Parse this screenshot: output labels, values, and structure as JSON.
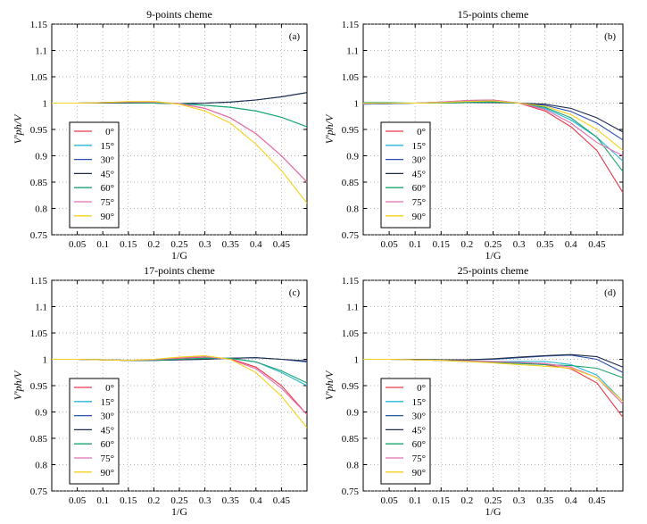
{
  "chart_data": [
    {
      "type": "line",
      "title": "9-points cheme",
      "tag": "(a)",
      "xlabel": "1/G",
      "ylabel": "V'ph/V",
      "xlim": [
        0,
        0.5
      ],
      "ylim": [
        0.75,
        1.15
      ],
      "xticks": [
        "0.05",
        "0.1",
        "0.15",
        "0.2",
        "0.25",
        "0.3",
        "0.35",
        "0.4",
        "0.45"
      ],
      "xtick_values": [
        0.05,
        0.1,
        0.15,
        0.2,
        0.25,
        0.3,
        0.35,
        0.4,
        0.45
      ],
      "yticks": [
        "0.75",
        "0.8",
        "0.85",
        "0.9",
        "0.95",
        "1",
        "1.05",
        "1.1",
        "1.15"
      ],
      "ytick_values": [
        0.75,
        0.8,
        0.85,
        0.9,
        0.95,
        1.0,
        1.05,
        1.1,
        1.15
      ],
      "grid": true,
      "legend": "bottom-left",
      "x": [
        0,
        0.05,
        0.1,
        0.15,
        0.2,
        0.25,
        0.3,
        0.35,
        0.4,
        0.45,
        0.5
      ],
      "series": [
        {
          "name": "0°",
          "color": "#e8394a",
          "values": [
            1.0,
            1.0,
            1.001,
            1.002,
            1.002,
            0.999,
            0.99,
            0.972,
            0.942,
            0.9,
            0.85
          ]
        },
        {
          "name": "15°",
          "color": "#29b6d8",
          "values": [
            1.0,
            1.0,
            1.001,
            1.001,
            1.0,
            0.999,
            0.996,
            0.992,
            0.985,
            0.973,
            0.955
          ]
        },
        {
          "name": "30°",
          "color": "#2a4fb0",
          "values": [
            1.0,
            1.0,
            1.0,
            1.0,
            1.0,
            0.999,
            1.0,
            1.002,
            1.006,
            1.012,
            1.02
          ]
        },
        {
          "name": "45°",
          "color": "#1f2f4a",
          "values": [
            1.0,
            1.0,
            1.0,
            1.0,
            1.0,
            0.999,
            1.0,
            1.002,
            1.006,
            1.012,
            1.02
          ]
        },
        {
          "name": "60°",
          "color": "#1aa56e",
          "values": [
            1.0,
            1.0,
            1.001,
            1.001,
            1.0,
            0.999,
            0.996,
            0.992,
            0.985,
            0.973,
            0.955
          ]
        },
        {
          "name": "75°",
          "color": "#e36fb2",
          "values": [
            1.0,
            1.0,
            1.001,
            1.002,
            1.002,
            0.999,
            0.99,
            0.972,
            0.942,
            0.9,
            0.85
          ]
        },
        {
          "name": "90°",
          "color": "#f2d21e",
          "values": [
            1.0,
            1.0,
            1.001,
            1.003,
            1.003,
            0.998,
            0.985,
            0.962,
            0.922,
            0.872,
            0.81
          ]
        }
      ]
    },
    {
      "type": "line",
      "title": "15-points cheme",
      "tag": "(b)",
      "xlabel": "1/G",
      "ylabel": "V'ph/V",
      "xlim": [
        0,
        0.5
      ],
      "ylim": [
        0.75,
        1.15
      ],
      "xticks": [
        "0.05",
        "0.1",
        "0.15",
        "0.2",
        "0.25",
        "0.3",
        "0.35",
        "0.4",
        "0.45"
      ],
      "xtick_values": [
        0.05,
        0.1,
        0.15,
        0.2,
        0.25,
        0.3,
        0.35,
        0.4,
        0.45
      ],
      "yticks": [
        "0.75",
        "0.8",
        "0.85",
        "0.9",
        "0.95",
        "1",
        "1.05",
        "1.1",
        "1.15"
      ],
      "ytick_values": [
        0.75,
        0.8,
        0.85,
        0.9,
        0.95,
        1.0,
        1.05,
        1.1,
        1.15
      ],
      "grid": true,
      "legend": "bottom-left",
      "x": [
        0,
        0.05,
        0.1,
        0.15,
        0.2,
        0.25,
        0.3,
        0.35,
        0.4,
        0.45,
        0.5
      ],
      "series": [
        {
          "name": "0°",
          "color": "#e8394a",
          "values": [
            0.998,
            0.999,
            1.0,
            1.002,
            1.005,
            1.006,
            1.0,
            0.985,
            0.955,
            0.91,
            0.83
          ]
        },
        {
          "name": "15°",
          "color": "#29b6d8",
          "values": [
            0.998,
            0.999,
            1.0,
            1.002,
            1.004,
            1.005,
            1.0,
            0.99,
            0.968,
            0.935,
            0.89
          ]
        },
        {
          "name": "30°",
          "color": "#2a4fb0",
          "values": [
            0.999,
            0.999,
            1.0,
            1.001,
            1.002,
            1.003,
            1.0,
            0.996,
            0.984,
            0.962,
            0.93
          ]
        },
        {
          "name": "45°",
          "color": "#1f2f4a",
          "values": [
            1.0,
            1.0,
            1.0,
            1.0,
            1.001,
            1.001,
            1.0,
            0.998,
            0.99,
            0.972,
            0.945
          ]
        },
        {
          "name": "60°",
          "color": "#1aa56e",
          "values": [
            1.001,
            1.001,
            1.0,
            1.0,
            1.001,
            1.002,
            1.0,
            0.992,
            0.972,
            0.935,
            0.87
          ]
        },
        {
          "name": "75°",
          "color": "#e36fb2",
          "values": [
            0.999,
            1.0,
            1.0,
            1.002,
            1.005,
            1.006,
            1.0,
            0.988,
            0.962,
            0.925,
            0.9
          ]
        },
        {
          "name": "90°",
          "color": "#f2d21e",
          "values": [
            1.0,
            1.0,
            1.0,
            1.001,
            1.003,
            1.004,
            1.0,
            0.994,
            0.978,
            0.95,
            0.91
          ]
        }
      ]
    },
    {
      "type": "line",
      "title": "17-points cheme",
      "tag": "(c)",
      "xlabel": "1/G",
      "ylabel": "V'ph/V",
      "xlim": [
        0,
        0.5
      ],
      "ylim": [
        0.75,
        1.15
      ],
      "xticks": [
        "0.05",
        "0.1",
        "0.15",
        "0.2",
        "0.25",
        "0.3",
        "0.35",
        "0.4",
        "0.45"
      ],
      "xtick_values": [
        0.05,
        0.1,
        0.15,
        0.2,
        0.25,
        0.3,
        0.35,
        0.4,
        0.45
      ],
      "yticks": [
        "0.75",
        "0.8",
        "0.85",
        "0.9",
        "0.95",
        "1",
        "1.05",
        "1.1",
        "1.15"
      ],
      "ytick_values": [
        0.75,
        0.8,
        0.85,
        0.9,
        0.95,
        1.0,
        1.05,
        1.1,
        1.15
      ],
      "grid": true,
      "legend": "bottom-left",
      "x": [
        0,
        0.05,
        0.1,
        0.15,
        0.2,
        0.25,
        0.3,
        0.35,
        0.4,
        0.45,
        0.5
      ],
      "series": [
        {
          "name": "0°",
          "color": "#e8394a",
          "values": [
            1.0,
            1.0,
            0.999,
            0.998,
            0.999,
            1.002,
            1.004,
            1.001,
            0.985,
            0.95,
            0.895
          ]
        },
        {
          "name": "15°",
          "color": "#29b6d8",
          "values": [
            1.0,
            1.0,
            0.999,
            0.998,
            0.998,
            1.0,
            1.002,
            1.002,
            0.995,
            0.975,
            0.95
          ]
        },
        {
          "name": "30°",
          "color": "#2a4fb0",
          "values": [
            1.0,
            1.0,
            0.999,
            0.998,
            0.998,
            0.999,
            1.0,
            1.002,
            1.003,
            1.0,
            0.995
          ]
        },
        {
          "name": "45°",
          "color": "#1f2f4a",
          "values": [
            1.0,
            1.0,
            0.999,
            0.998,
            0.998,
            0.999,
            1.0,
            1.002,
            1.003,
            1.0,
            0.997
          ]
        },
        {
          "name": "60°",
          "color": "#1aa56e",
          "values": [
            1.0,
            1.0,
            0.999,
            0.998,
            0.998,
            1.0,
            1.002,
            1.002,
            0.995,
            0.978,
            0.955
          ]
        },
        {
          "name": "75°",
          "color": "#e36fb2",
          "values": [
            1.0,
            1.0,
            0.999,
            0.998,
            0.999,
            1.003,
            1.005,
            1.0,
            0.982,
            0.945,
            0.895
          ]
        },
        {
          "name": "90°",
          "color": "#f2d21e",
          "values": [
            1.0,
            1.0,
            0.999,
            0.998,
            1.0,
            1.004,
            1.007,
            1.0,
            0.975,
            0.93,
            0.87
          ]
        }
      ]
    },
    {
      "type": "line",
      "title": "25-points cheme",
      "tag": "(d)",
      "xlabel": "1/G",
      "ylabel": "V'ph/V",
      "xlim": [
        0,
        0.5
      ],
      "ylim": [
        0.75,
        1.15
      ],
      "xticks": [
        "0.05",
        "0.1",
        "0.15",
        "0.2",
        "0.25",
        "0.3",
        "0.35",
        "0.4",
        "0.45"
      ],
      "xtick_values": [
        0.05,
        0.1,
        0.15,
        0.2,
        0.25,
        0.3,
        0.35,
        0.4,
        0.45
      ],
      "yticks": [
        "0.75",
        "0.8",
        "0.85",
        "0.9",
        "0.95",
        "1",
        "1.05",
        "1.1",
        "1.15"
      ],
      "ytick_values": [
        0.75,
        0.8,
        0.85,
        0.9,
        0.95,
        1.0,
        1.05,
        1.1,
        1.15
      ],
      "grid": true,
      "legend": "bottom-left",
      "x": [
        0,
        0.05,
        0.1,
        0.15,
        0.2,
        0.25,
        0.3,
        0.35,
        0.4,
        0.45,
        0.5
      ],
      "series": [
        {
          "name": "0°",
          "color": "#e8394a",
          "values": [
            1.0,
            1.0,
            0.999,
            0.998,
            0.997,
            0.995,
            0.993,
            0.99,
            0.982,
            0.955,
            0.89
          ]
        },
        {
          "name": "15°",
          "color": "#29b6d8",
          "values": [
            1.0,
            1.0,
            0.999,
            0.998,
            0.997,
            0.996,
            0.996,
            0.996,
            0.99,
            0.97,
            0.92
          ]
        },
        {
          "name": "30°",
          "color": "#2a4fb0",
          "values": [
            1.0,
            1.0,
            1.0,
            0.999,
            0.999,
            1.0,
            1.003,
            1.006,
            1.008,
            1.0,
            0.975
          ]
        },
        {
          "name": "45°",
          "color": "#1f2f4a",
          "values": [
            1.0,
            1.0,
            1.0,
            0.999,
            0.999,
            1.001,
            1.004,
            1.007,
            1.009,
            1.005,
            0.985
          ]
        },
        {
          "name": "60°",
          "color": "#1aa56e",
          "values": [
            1.0,
            1.0,
            0.999,
            0.998,
            0.996,
            0.994,
            0.992,
            0.99,
            0.988,
            0.983,
            0.965
          ]
        },
        {
          "name": "75°",
          "color": "#e36fb2",
          "values": [
            1.0,
            1.0,
            0.999,
            0.998,
            0.997,
            0.996,
            0.994,
            0.992,
            0.985,
            0.965,
            0.915
          ]
        },
        {
          "name": "90°",
          "color": "#f2d21e",
          "values": [
            1.0,
            1.0,
            0.999,
            0.998,
            0.996,
            0.993,
            0.99,
            0.987,
            0.983,
            0.965,
            0.92
          ]
        }
      ]
    }
  ]
}
